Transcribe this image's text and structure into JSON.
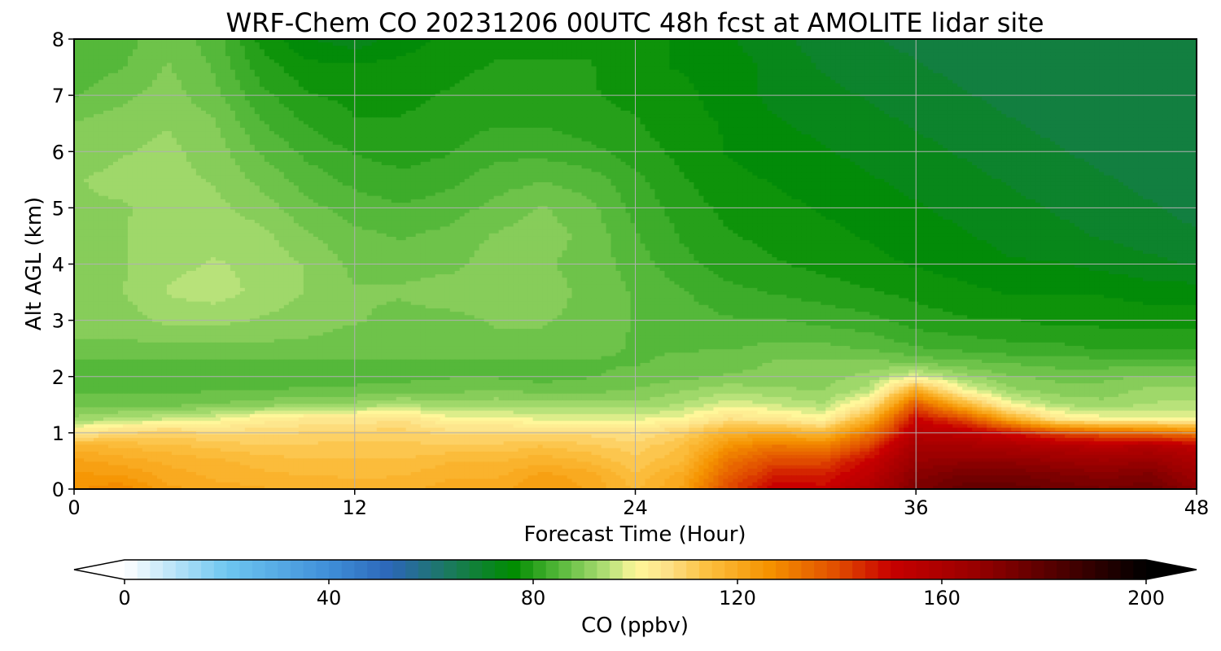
{
  "chart_data": {
    "type": "heatmap",
    "title": "WRF-Chem CO  20231206 00UTC 48h fcst at AMOLITE lidar site",
    "xlabel": "Forecast Time (Hour)",
    "ylabel": "Alt AGL (km)",
    "xlim": [
      0,
      48
    ],
    "ylim": [
      0,
      8
    ],
    "xticks": [
      0,
      12,
      24,
      36,
      48
    ],
    "yticks": [
      0,
      1,
      2,
      3,
      4,
      5,
      6,
      7,
      8
    ],
    "grid": true,
    "x": [
      0,
      2,
      4,
      6,
      8,
      10,
      12,
      14,
      16,
      18,
      20,
      22,
      24,
      26,
      28,
      30,
      32,
      34,
      36,
      38,
      40,
      42,
      44,
      46,
      48
    ],
    "y": [
      0,
      0.25,
      0.5,
      0.75,
      1.0,
      1.25,
      1.5,
      1.75,
      2.0,
      2.25,
      2.5,
      3.0,
      3.5,
      4.0,
      4.5,
      5.0,
      5.5,
      6.0,
      6.5,
      7.0,
      7.5,
      8.0
    ],
    "z_units": "ppbv",
    "z": [
      [
        126,
        128,
        122,
        120,
        119,
        119,
        117,
        118,
        120,
        120,
        124,
        121,
        116,
        122,
        140,
        152,
        150,
        158,
        172,
        178,
        178,
        176,
        174,
        176,
        168
      ],
      [
        124,
        124,
        120,
        118,
        117,
        116,
        116,
        116,
        118,
        118,
        122,
        120,
        114,
        120,
        136,
        146,
        146,
        154,
        170,
        174,
        174,
        172,
        170,
        172,
        164
      ],
      [
        122,
        120,
        118,
        117,
        115,
        114,
        114,
        114,
        116,
        116,
        118,
        116,
        112,
        116,
        132,
        140,
        140,
        150,
        166,
        168,
        168,
        166,
        164,
        166,
        160
      ],
      [
        118,
        116,
        115,
        113,
        112,
        112,
        112,
        112,
        112,
        112,
        114,
        112,
        110,
        114,
        126,
        132,
        130,
        142,
        162,
        162,
        160,
        158,
        156,
        158,
        154
      ],
      [
        104,
        108,
        110,
        108,
        108,
        109,
        110,
        110,
        108,
        108,
        108,
        108,
        106,
        110,
        118,
        120,
        116,
        132,
        156,
        154,
        148,
        140,
        136,
        134,
        130
      ],
      [
        92,
        94,
        96,
        98,
        102,
        104,
        104,
        106,
        100,
        100,
        98,
        98,
        98,
        100,
        106,
        104,
        100,
        118,
        150,
        140,
        120,
        104,
        100,
        100,
        98
      ],
      [
        88,
        88,
        88,
        89,
        90,
        92,
        92,
        94,
        92,
        93,
        92,
        92,
        92,
        94,
        98,
        96,
        94,
        104,
        138,
        118,
        100,
        94,
        92,
        94,
        95
      ],
      [
        86,
        86,
        86,
        86,
        86,
        87,
        87,
        88,
        88,
        89,
        88,
        88,
        89,
        91,
        93,
        92,
        91,
        95,
        120,
        100,
        92,
        90,
        90,
        92,
        92
      ],
      [
        84,
        84,
        84,
        84,
        84,
        85,
        85,
        85,
        86,
        86,
        85,
        86,
        87,
        88,
        89,
        89,
        90,
        92,
        98,
        92,
        89,
        88,
        88,
        89,
        89
      ],
      [
        86,
        86,
        86,
        86,
        86,
        86,
        86,
        86,
        86,
        86,
        86,
        86,
        86,
        87,
        88,
        89,
        89,
        90,
        88,
        87,
        86,
        85,
        85,
        85,
        85
      ],
      [
        88,
        88,
        88,
        88,
        88,
        88,
        87,
        87,
        87,
        88,
        88,
        87,
        86,
        86,
        86,
        87,
        87,
        86,
        84,
        83,
        82,
        82,
        81,
        81,
        81
      ],
      [
        90,
        90,
        92,
        92,
        91,
        90,
        89,
        88,
        88,
        89,
        89,
        88,
        86,
        85,
        84,
        84,
        83,
        82,
        80,
        79,
        79,
        78,
        78,
        78,
        78
      ],
      [
        90,
        91,
        94,
        95,
        93,
        91,
        89,
        89,
        90,
        90,
        90,
        88,
        86,
        84,
        82,
        81,
        80,
        79,
        78,
        77,
        76,
        76,
        76,
        75,
        75
      ],
      [
        90,
        91,
        93,
        94,
        93,
        91,
        88,
        88,
        88,
        90,
        89,
        88,
        85,
        82,
        80,
        79,
        78,
        77,
        76,
        75,
        74,
        74,
        73,
        72,
        71
      ],
      [
        91,
        91,
        93,
        93,
        92,
        89,
        87,
        86,
        87,
        89,
        90,
        88,
        84,
        81,
        79,
        78,
        77,
        76,
        75,
        74,
        73,
        72,
        71,
        70,
        69
      ],
      [
        91,
        91,
        92,
        92,
        90,
        87,
        85,
        84,
        85,
        87,
        89,
        87,
        83,
        80,
        78,
        77,
        76,
        75,
        74,
        73,
        72,
        71,
        70,
        69,
        68
      ],
      [
        91,
        92,
        92,
        91,
        88,
        85,
        83,
        82,
        83,
        85,
        86,
        85,
        82,
        79,
        77,
        76,
        75,
        74,
        73,
        72,
        71,
        70,
        69,
        68,
        68
      ],
      [
        90,
        91,
        92,
        90,
        86,
        83,
        81,
        80,
        81,
        83,
        83,
        82,
        80,
        78,
        76,
        75,
        74,
        73,
        72,
        71,
        70,
        69,
        68,
        68,
        68
      ],
      [
        89,
        90,
        91,
        89,
        84,
        81,
        79,
        79,
        80,
        81,
        81,
        80,
        79,
        77,
        76,
        74,
        73,
        72,
        71,
        70,
        69,
        68,
        68,
        68,
        68
      ],
      [
        86,
        88,
        90,
        87,
        82,
        79,
        78,
        78,
        79,
        80,
        80,
        79,
        78,
        77,
        75,
        73,
        72,
        71,
        70,
        69,
        68,
        68,
        68,
        68,
        68
      ],
      [
        85,
        86,
        89,
        86,
        80,
        77,
        77,
        77,
        78,
        79,
        79,
        79,
        77,
        76,
        75,
        73,
        71,
        70,
        69,
        68,
        68,
        68,
        68,
        68,
        68
      ],
      [
        84,
        85,
        88,
        85,
        78,
        74,
        72,
        75,
        77,
        78,
        78,
        78,
        77,
        76,
        74,
        72,
        70,
        69,
        68,
        68,
        68,
        68,
        68,
        68,
        68
      ]
    ],
    "colorbar": {
      "label": "CO  (ppbv)",
      "min": 0,
      "max": 200,
      "ticks": [
        0,
        40,
        80,
        120,
        160,
        200
      ],
      "extend": "both",
      "colormap": [
        [
          0,
          "#ffffff"
        ],
        [
          20,
          "#6ec6f0"
        ],
        [
          40,
          "#3f8fd8"
        ],
        [
          52,
          "#2c66b8"
        ],
        [
          64,
          "#1a7a5a"
        ],
        [
          76,
          "#008c00"
        ],
        [
          85,
          "#55b83a"
        ],
        [
          95,
          "#b8e27a"
        ],
        [
          100,
          "#fff79a"
        ],
        [
          106,
          "#fde28a"
        ],
        [
          114,
          "#fcc040"
        ],
        [
          126,
          "#f59300"
        ],
        [
          140,
          "#e04a00"
        ],
        [
          150,
          "#c80000"
        ],
        [
          166,
          "#9a0000"
        ],
        [
          184,
          "#4a0000"
        ],
        [
          200,
          "#000000"
        ]
      ]
    }
  }
}
